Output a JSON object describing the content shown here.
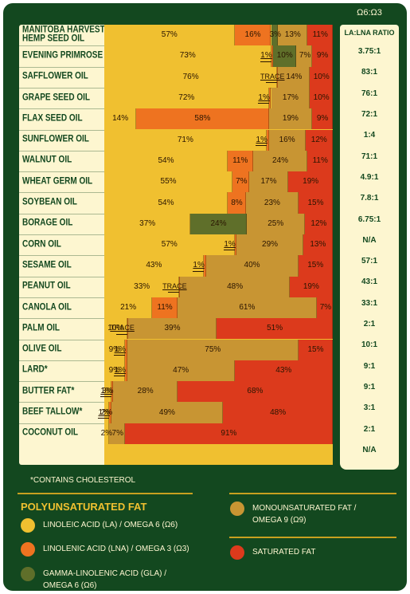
{
  "ratio_header_top": "Ω6:Ω3",
  "ratio_header": "LA:LNA RATIO",
  "footnote": "*CONTAINS CHOLESTEROL",
  "legend": {
    "poly_title": "POLYUNSATURATED FAT",
    "items": [
      {
        "key": "la",
        "label_lines": [
          "LINOLEIC ACID (LA) / OMEGA 6 (Ω6)"
        ],
        "color": "#f0c030"
      },
      {
        "key": "lna",
        "label_lines": [
          "LINOLENIC ACID (LNA) / OMEGA 3 (Ω3)"
        ],
        "color": "#ee7320"
      },
      {
        "key": "gla",
        "label_lines": [
          "GAMMA-LINOLENIC ACID (GLA) /",
          "OMEGA 6 (Ω6)"
        ],
        "color": "#5f6f2a"
      },
      {
        "key": "mono",
        "label_lines": [
          "MONOUNSATURATED FAT /",
          "OMEGA 9 (Ω9)"
        ],
        "color": "#c89533"
      },
      {
        "key": "sat",
        "label_lines": [
          "SATURATED FAT"
        ],
        "color": "#dc3a1c"
      }
    ]
  },
  "colors": {
    "la": "#f0c030",
    "lna": "#ee7320",
    "gla": "#5f6f2a",
    "mono": "#c89533",
    "sat": "#dc3a1c"
  },
  "chart_data": {
    "type": "bar",
    "stacked": true,
    "orientation": "horizontal",
    "series_order": [
      "la",
      "lna",
      "gla",
      "mono",
      "sat"
    ],
    "rows": [
      {
        "name": "MANITOBA HARVEST™ HEMP SEED OIL",
        "name_lines": [
          "MANITOBA HARVEST™",
          "HEMP SEED OIL"
        ],
        "ratio": "3.75:1",
        "segments": [
          {
            "s": "la",
            "v": 57,
            "label": "57%"
          },
          {
            "s": "lna",
            "v": 16,
            "label": "16%"
          },
          {
            "s": "gla",
            "v": 3,
            "label": "3%"
          },
          {
            "s": "mono",
            "v": 13,
            "label": "13%"
          },
          {
            "s": "sat",
            "v": 11,
            "label": "11%"
          }
        ]
      },
      {
        "name": "EVENING PRIMROSE OIL",
        "ratio": "83:1",
        "segments": [
          {
            "s": "la",
            "v": 73,
            "label": "73%"
          },
          {
            "s": "lna",
            "v": 1,
            "label": "1%",
            "arrow": true
          },
          {
            "s": "gla",
            "v": 10,
            "label": "10%"
          },
          {
            "s": "mono",
            "v": 7,
            "label": "7%"
          },
          {
            "s": "sat",
            "v": 9,
            "label": "9%"
          }
        ]
      },
      {
        "name": "SAFFLOWER OIL",
        "ratio": "76:1",
        "segments": [
          {
            "s": "la",
            "v": 76,
            "label": "76%"
          },
          {
            "s": "lna",
            "v": 0.4,
            "label": "TRACE",
            "arrow": true
          },
          {
            "s": "mono",
            "v": 14,
            "label": "14%"
          },
          {
            "s": "sat",
            "v": 10,
            "label": "10%"
          }
        ]
      },
      {
        "name": "GRAPE SEED OIL",
        "ratio": "72:1",
        "segments": [
          {
            "s": "la",
            "v": 72,
            "label": "72%"
          },
          {
            "s": "lna",
            "v": 1,
            "label": "1%",
            "arrow": true
          },
          {
            "s": "mono",
            "v": 17,
            "label": "17%"
          },
          {
            "s": "sat",
            "v": 10,
            "label": "10%"
          }
        ]
      },
      {
        "name": "FLAX SEED OIL",
        "ratio": "1:4",
        "segments": [
          {
            "s": "la",
            "v": 14,
            "label": "14%"
          },
          {
            "s": "lna",
            "v": 58,
            "label": "58%"
          },
          {
            "s": "mono",
            "v": 19,
            "label": "19%"
          },
          {
            "s": "sat",
            "v": 9,
            "label": "9%"
          }
        ]
      },
      {
        "name": "SUNFLOWER OIL",
        "ratio": "71:1",
        "segments": [
          {
            "s": "la",
            "v": 71,
            "label": "71%"
          },
          {
            "s": "lna",
            "v": 1,
            "label": "1%",
            "arrow": true
          },
          {
            "s": "mono",
            "v": 16,
            "label": "16%"
          },
          {
            "s": "sat",
            "v": 12,
            "label": "12%"
          }
        ]
      },
      {
        "name": "WALNUT OIL",
        "ratio": "4.9:1",
        "segments": [
          {
            "s": "la",
            "v": 54,
            "label": "54%"
          },
          {
            "s": "lna",
            "v": 11,
            "label": "11%"
          },
          {
            "s": "mono",
            "v": 24,
            "label": "24%"
          },
          {
            "s": "sat",
            "v": 11,
            "label": "11%"
          }
        ]
      },
      {
        "name": "WHEAT GERM OIL",
        "ratio": "7.8:1",
        "segments": [
          {
            "s": "la",
            "v": 55,
            "label": "55%"
          },
          {
            "s": "lna",
            "v": 7,
            "label": "7%"
          },
          {
            "s": "mono",
            "v": 17,
            "label": "17%"
          },
          {
            "s": "sat",
            "v": 19,
            "label": "19%"
          }
        ]
      },
      {
        "name": "SOYBEAN OIL",
        "ratio": "6.75:1",
        "segments": [
          {
            "s": "la",
            "v": 54,
            "label": "54%"
          },
          {
            "s": "lna",
            "v": 8,
            "label": "8%"
          },
          {
            "s": "mono",
            "v": 23,
            "label": "23%"
          },
          {
            "s": "sat",
            "v": 15,
            "label": "15%"
          }
        ]
      },
      {
        "name": "BORAGE OIL",
        "ratio": "N/A",
        "segments": [
          {
            "s": "la",
            "v": 37,
            "label": "37%"
          },
          {
            "s": "gla",
            "v": 24,
            "label": "24%"
          },
          {
            "s": "mono",
            "v": 25,
            "label": "25%"
          },
          {
            "s": "sat",
            "v": 12,
            "label": "12%"
          }
        ]
      },
      {
        "name": "CORN OIL",
        "ratio": "57:1",
        "segments": [
          {
            "s": "la",
            "v": 57,
            "label": "57%"
          },
          {
            "s": "lna",
            "v": 1,
            "label": "1%",
            "arrow": true
          },
          {
            "s": "mono",
            "v": 29,
            "label": "29%"
          },
          {
            "s": "sat",
            "v": 13,
            "label": "13%"
          }
        ]
      },
      {
        "name": "SESAME OIL",
        "ratio": "43:1",
        "segments": [
          {
            "s": "la",
            "v": 43,
            "label": "43%"
          },
          {
            "s": "lna",
            "v": 1,
            "label": "1%",
            "arrow": true
          },
          {
            "s": "mono",
            "v": 40,
            "label": "40%"
          },
          {
            "s": "sat",
            "v": 15,
            "label": "15%"
          }
        ]
      },
      {
        "name": "PEANUT OIL",
        "ratio": "33:1",
        "segments": [
          {
            "s": "la",
            "v": 33,
            "label": "33%"
          },
          {
            "s": "lna",
            "v": 0.4,
            "label": "TRACE",
            "arrow": true
          },
          {
            "s": "mono",
            "v": 48,
            "label": "48%"
          },
          {
            "s": "sat",
            "v": 19,
            "label": "19%"
          }
        ]
      },
      {
        "name": "CANOLA OIL",
        "ratio": "2:1",
        "segments": [
          {
            "s": "la",
            "v": 21,
            "label": "21%"
          },
          {
            "s": "lna",
            "v": 11,
            "label": "11%"
          },
          {
            "s": "mono",
            "v": 61,
            "label": "61%"
          },
          {
            "s": "sat",
            "v": 7,
            "label": "7%"
          }
        ]
      },
      {
        "name": "PALM OIL",
        "ratio": "10:1",
        "segments": [
          {
            "s": "la",
            "v": 10,
            "label": "10%"
          },
          {
            "s": "lna",
            "v": 0.4,
            "label": "TRACE",
            "arrow": true
          },
          {
            "s": "mono",
            "v": 39,
            "label": "39%"
          },
          {
            "s": "sat",
            "v": 51,
            "label": "51%"
          }
        ]
      },
      {
        "name": "OLIVE OIL",
        "ratio": "9:1",
        "segments": [
          {
            "s": "la",
            "v": 9,
            "label": "9%"
          },
          {
            "s": "lna",
            "v": 1,
            "label": "1%",
            "arrow": true
          },
          {
            "s": "mono",
            "v": 75,
            "label": "75%"
          },
          {
            "s": "sat",
            "v": 15,
            "label": "15%"
          }
        ]
      },
      {
        "name": "LARD*",
        "ratio": "9:1",
        "segments": [
          {
            "s": "la",
            "v": 9,
            "label": "9%"
          },
          {
            "s": "lna",
            "v": 1,
            "label": "1%",
            "arrow": true
          },
          {
            "s": "mono",
            "v": 47,
            "label": "47%"
          },
          {
            "s": "sat",
            "v": 43,
            "label": "43%"
          }
        ]
      },
      {
        "name": "BUTTER FAT*",
        "ratio": "3:1",
        "segments": [
          {
            "s": "la",
            "v": 3,
            "label": "3%"
          },
          {
            "s": "lna",
            "v": 1,
            "label": "1%",
            "arrow": true
          },
          {
            "s": "mono",
            "v": 28,
            "label": "28%"
          },
          {
            "s": "sat",
            "v": 68,
            "label": "68%"
          }
        ]
      },
      {
        "name": "BEEF TALLOW*",
        "ratio": "2:1",
        "segments": [
          {
            "s": "la",
            "v": 2,
            "label": "2%"
          },
          {
            "s": "lna",
            "v": 1,
            "label": "1%",
            "arrow": true
          },
          {
            "s": "mono",
            "v": 49,
            "label": "49%"
          },
          {
            "s": "sat",
            "v": 48,
            "label": "48%"
          }
        ]
      },
      {
        "name": "COCONUT OIL",
        "ratio": "N/A",
        "segments": [
          {
            "s": "la",
            "v": 2,
            "label": "2%"
          },
          {
            "s": "mono",
            "v": 7,
            "label": "7%"
          },
          {
            "s": "sat",
            "v": 91,
            "label": "91%"
          }
        ]
      }
    ]
  }
}
